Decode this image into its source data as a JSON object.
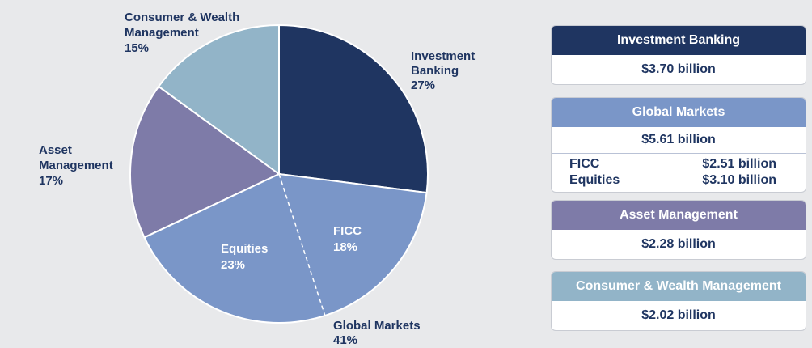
{
  "chart_data": {
    "type": "pie",
    "slices": [
      {
        "key": "ib",
        "label_lines": [
          "Investment",
          "Banking"
        ],
        "percent_label": "27%",
        "value": 27,
        "color": "#1f3561"
      },
      {
        "key": "ficc",
        "label_lines": [
          "FICC"
        ],
        "percent_label": "18%",
        "value": 18,
        "color": "#7a96c8"
      },
      {
        "key": "eq",
        "label_lines": [
          "Equities"
        ],
        "percent_label": "23%",
        "value": 23,
        "color": "#7a96c8"
      },
      {
        "key": "am",
        "label_lines": [
          "Asset",
          "Management"
        ],
        "percent_label": "17%",
        "value": 17,
        "color": "#7e7ba8"
      },
      {
        "key": "cwm",
        "label_lines": [
          "Consumer & Wealth",
          "Management"
        ],
        "percent_label": "15%",
        "value": 15,
        "color": "#92b4c8"
      }
    ],
    "group_labels": [
      {
        "label_lines": [
          "Global Markets"
        ],
        "percent_label": "41%"
      }
    ]
  },
  "cards": {
    "ib": {
      "title": "Investment Banking",
      "value": "$3.70 billion",
      "color": "#1f3561"
    },
    "gm": {
      "title": "Global Markets",
      "value": "$5.61 billion",
      "color": "#7a96c8",
      "rows": [
        {
          "name": "FICC",
          "value": "$2.51 billion"
        },
        {
          "name": "Equities",
          "value": "$3.10 billion"
        }
      ]
    },
    "am": {
      "title": "Asset Management",
      "value": "$2.28 billion",
      "color": "#7e7ba8"
    },
    "cwm": {
      "title": "Consumer & Wealth Management",
      "value": "$2.02 billion",
      "color": "#92b4c8"
    }
  }
}
